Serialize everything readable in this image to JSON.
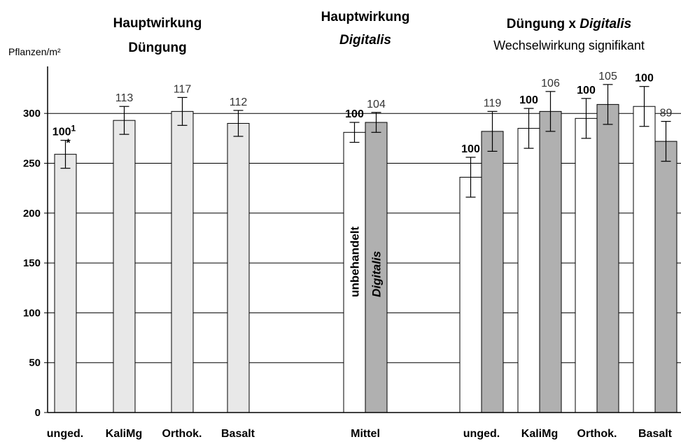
{
  "chart_data": {
    "type": "bar",
    "ylabel": "Pflanzen/m²",
    "ylim": [
      0,
      350
    ],
    "yticks": [
      0,
      50,
      100,
      150,
      200,
      250,
      300
    ],
    "grid": true,
    "groups": [
      {
        "title_lines": [
          "Hauptwirkung",
          "Düngung"
        ],
        "title_parts": [
          [
            {
              "text": "Hauptwirkung",
              "italic": false
            }
          ],
          [
            {
              "text": "Düngung",
              "italic": false
            }
          ]
        ],
        "subtitle": "",
        "categories": [
          "unged.",
          "KaliMg",
          "Orthok.",
          "Basalt"
        ],
        "bars": [
          {
            "category": "unged.",
            "value": 259,
            "err": 14,
            "label": "100",
            "label_sup": "1",
            "sig": "*",
            "label_bold": true,
            "color": "#e8e8e8"
          },
          {
            "category": "KaliMg",
            "value": 293,
            "err": 14,
            "label": "113",
            "label_sup": "",
            "sig": "",
            "label_bold": false,
            "color": "#e8e8e8"
          },
          {
            "category": "Orthok.",
            "value": 302,
            "err": 14,
            "label": "117",
            "label_sup": "",
            "sig": "",
            "label_bold": false,
            "color": "#e8e8e8"
          },
          {
            "category": "Basalt",
            "value": 290,
            "err": 13,
            "label": "112",
            "label_sup": "",
            "sig": "",
            "label_bold": false,
            "color": "#e8e8e8"
          }
        ]
      },
      {
        "title_lines": [
          "Hauptwirkung",
          "Digitalis"
        ],
        "title_parts": [
          [
            {
              "text": "Hauptwirkung",
              "italic": false
            }
          ],
          [
            {
              "text": "Digitalis",
              "italic": true
            }
          ]
        ],
        "subtitle": "",
        "categories": [
          "Mittel"
        ],
        "bars": [
          {
            "category": "Mittel",
            "series": "unbehandelt",
            "value": 281,
            "err": 10,
            "label": "100",
            "label_bold": true,
            "color": "#ffffff",
            "inner_label": "unbehandelt",
            "inner_italic": false
          },
          {
            "category": "Mittel",
            "series": "Digitalis",
            "value": 291,
            "err": 10,
            "label": "104",
            "label_bold": false,
            "color": "#b0b0b0",
            "inner_label": "Digitalis",
            "inner_italic": true
          }
        ]
      },
      {
        "title_lines": [
          "Düngung x Digitalis"
        ],
        "title_parts": [
          [
            {
              "text": "Düngung x ",
              "italic": false
            },
            {
              "text": "Digitalis",
              "italic": true
            }
          ]
        ],
        "subtitle": "Wechselwirkung signifikant",
        "categories": [
          "unged.",
          "KaliMg",
          "Orthok.",
          "Basalt"
        ],
        "bars": [
          {
            "category": "unged.",
            "series": "unbehandelt",
            "value": 236,
            "err": 20,
            "label": "100",
            "label_bold": true,
            "color": "#ffffff"
          },
          {
            "category": "unged.",
            "series": "Digitalis",
            "value": 282,
            "err": 20,
            "label": "119",
            "label_bold": false,
            "color": "#b0b0b0"
          },
          {
            "category": "KaliMg",
            "series": "unbehandelt",
            "value": 285,
            "err": 20,
            "label": "100",
            "label_bold": true,
            "color": "#ffffff"
          },
          {
            "category": "KaliMg",
            "series": "Digitalis",
            "value": 302,
            "err": 20,
            "label": "106",
            "label_bold": false,
            "color": "#b0b0b0"
          },
          {
            "category": "Orthok.",
            "series": "unbehandelt",
            "value": 295,
            "err": 20,
            "label": "100",
            "label_bold": true,
            "color": "#ffffff"
          },
          {
            "category": "Orthok.",
            "series": "Digitalis",
            "value": 309,
            "err": 20,
            "label": "105",
            "label_bold": false,
            "color": "#b0b0b0"
          },
          {
            "category": "Basalt",
            "series": "unbehandelt",
            "value": 307,
            "err": 20,
            "label": "100",
            "label_bold": true,
            "color": "#ffffff"
          },
          {
            "category": "Basalt",
            "series": "Digitalis",
            "value": 272,
            "err": 20,
            "label": "89",
            "label_bold": false,
            "color": "#b0b0b0"
          }
        ]
      }
    ]
  }
}
